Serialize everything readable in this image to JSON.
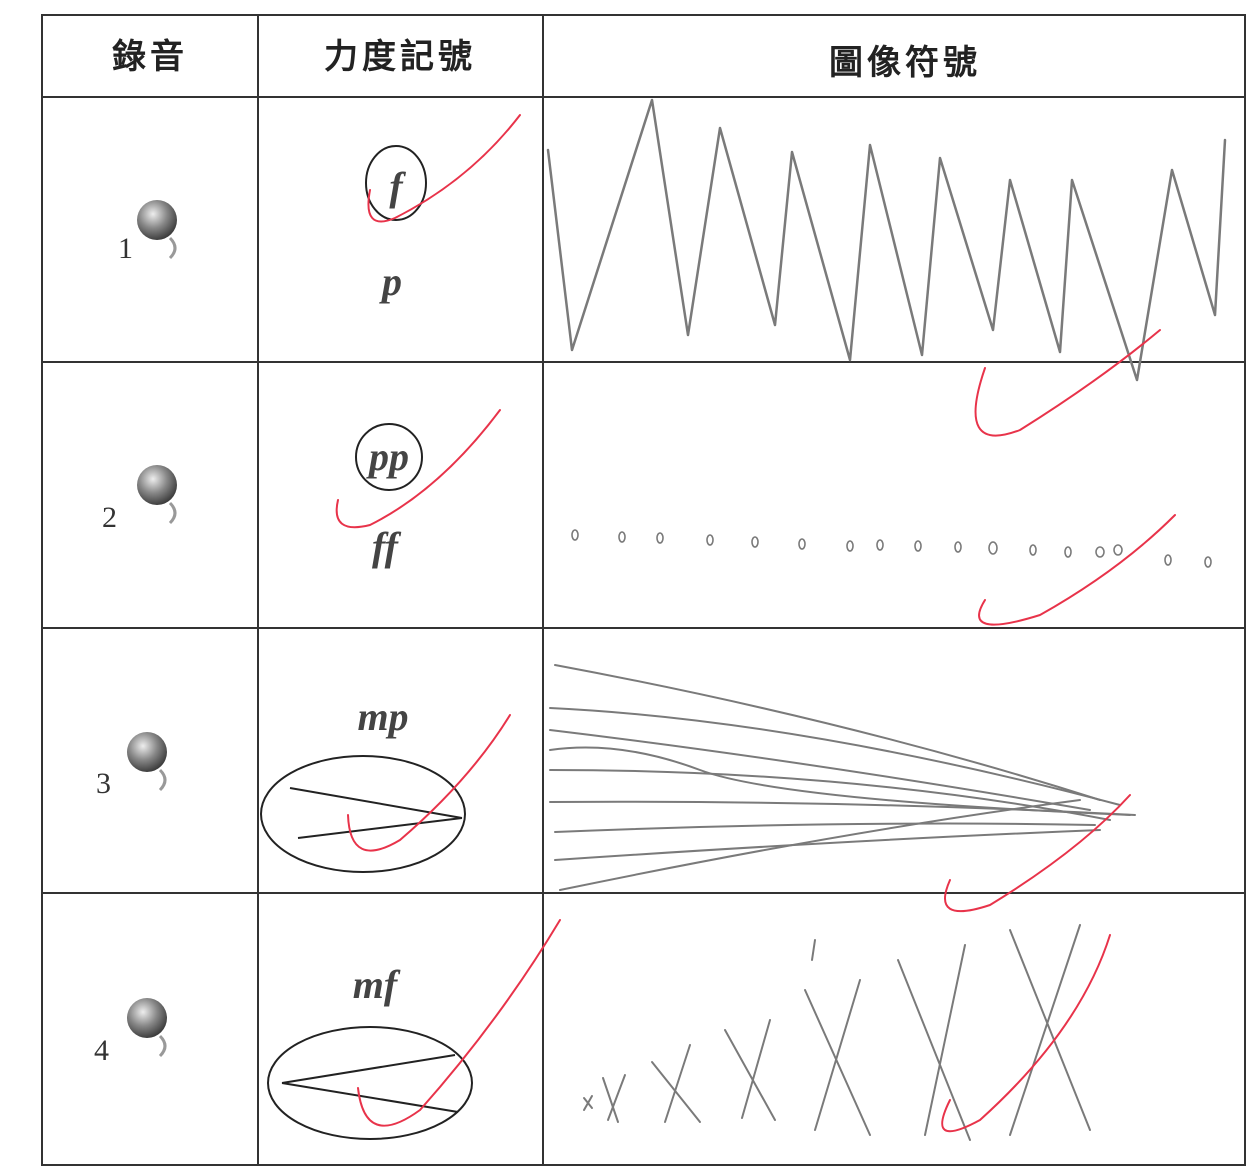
{
  "table": {
    "headers": [
      "錄音",
      "力度記號",
      "圖像符號"
    ],
    "rows": [
      {
        "number": "1",
        "dynamics": [
          "f",
          "p"
        ]
      },
      {
        "number": "2",
        "dynamics": [
          "pp",
          "ff"
        ]
      },
      {
        "number": "3",
        "dynamics": [
          "mp"
        ]
      },
      {
        "number": "4",
        "dynamics": [
          "mf"
        ]
      }
    ]
  }
}
